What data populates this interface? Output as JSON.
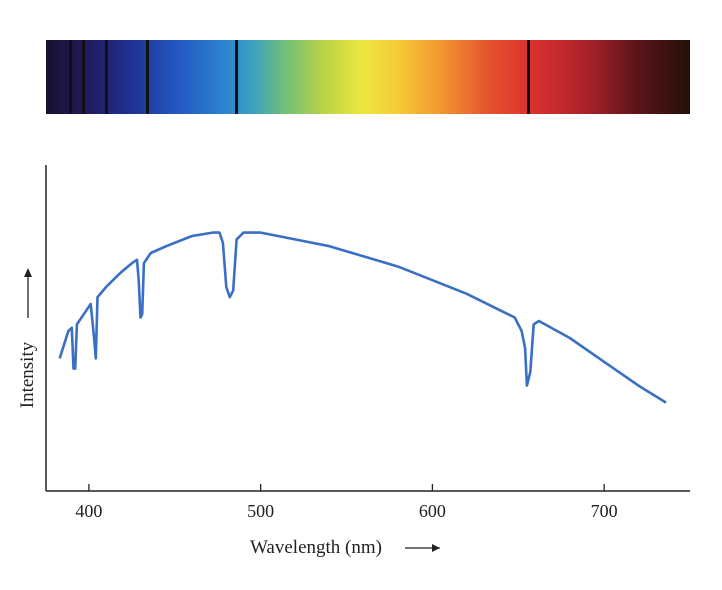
{
  "chart_data": {
    "type": "line",
    "title": "",
    "xlabel": "Wavelength (nm)",
    "ylabel": "Intensity",
    "xlim": [
      375,
      750
    ],
    "x_ticks": [
      400,
      500,
      600,
      700
    ],
    "y_ticks": [],
    "grid": false,
    "legend": "none",
    "series": [
      {
        "color": "#3a6fc4",
        "points": [
          [
            383,
            0.39
          ],
          [
            388,
            0.47
          ],
          [
            390,
            0.48
          ],
          [
            391,
            0.36
          ],
          [
            392,
            0.36
          ],
          [
            393,
            0.49
          ],
          [
            397,
            0.52
          ],
          [
            401,
            0.55
          ],
          [
            403,
            0.45
          ],
          [
            404,
            0.39
          ],
          [
            405,
            0.57
          ],
          [
            410,
            0.6
          ],
          [
            418,
            0.64
          ],
          [
            425,
            0.67
          ],
          [
            428,
            0.68
          ],
          [
            429,
            0.62
          ],
          [
            430,
            0.51
          ],
          [
            431,
            0.52
          ],
          [
            432,
            0.67
          ],
          [
            436,
            0.7
          ],
          [
            445,
            0.72
          ],
          [
            460,
            0.75
          ],
          [
            472,
            0.76
          ],
          [
            476,
            0.76
          ],
          [
            478,
            0.73
          ],
          [
            480,
            0.6
          ],
          [
            482,
            0.57
          ],
          [
            484,
            0.59
          ],
          [
            486,
            0.74
          ],
          [
            490,
            0.76
          ],
          [
            500,
            0.76
          ],
          [
            520,
            0.74
          ],
          [
            540,
            0.72
          ],
          [
            560,
            0.69
          ],
          [
            580,
            0.66
          ],
          [
            600,
            0.62
          ],
          [
            620,
            0.58
          ],
          [
            640,
            0.53
          ],
          [
            648,
            0.51
          ],
          [
            652,
            0.47
          ],
          [
            654,
            0.42
          ],
          [
            655,
            0.31
          ],
          [
            657,
            0.35
          ],
          [
            659,
            0.49
          ],
          [
            662,
            0.5
          ],
          [
            680,
            0.45
          ],
          [
            700,
            0.38
          ],
          [
            720,
            0.31
          ],
          [
            736,
            0.26
          ]
        ]
      }
    ],
    "spectrum_strip": {
      "absorption_lines_nm": [
        389,
        397,
        410,
        434,
        486,
        656
      ]
    }
  }
}
